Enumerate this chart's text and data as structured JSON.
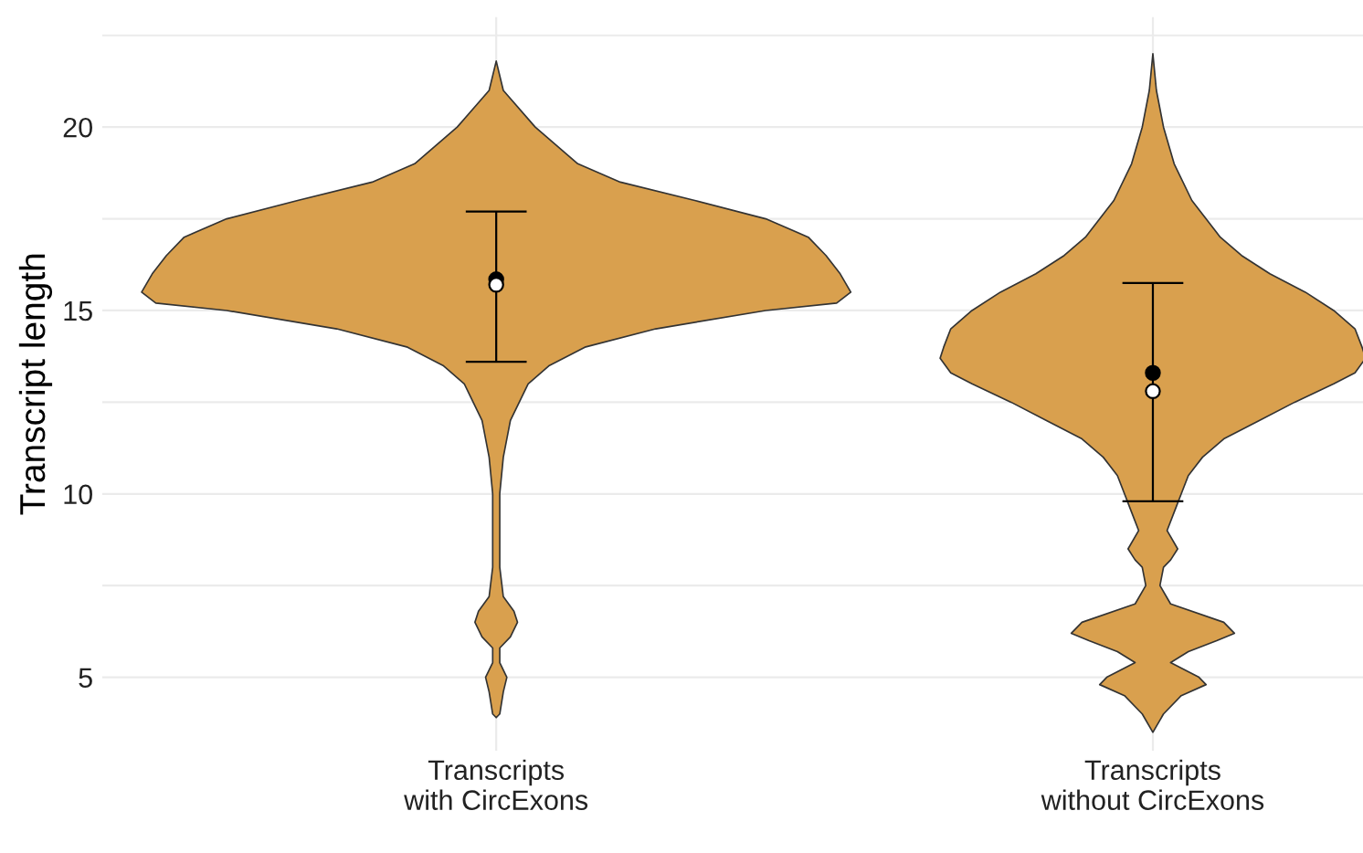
{
  "chart_data": {
    "type": "scatter",
    "ylabel": "Transcript length",
    "categories": [
      "Transcripts\nwith CircExons",
      "Transcripts\nwithout CircExons"
    ],
    "ylim": [
      3,
      23
    ],
    "yticks": [
      5,
      {
        "value": 7.5,
        "label": null
      },
      10,
      {
        "value": 12.5,
        "label": null
      },
      15,
      {
        "value": 17.5,
        "label": null
      },
      20,
      {
        "value": 22.5,
        "label": null
      }
    ],
    "grid": true,
    "series": [
      {
        "color": "#000000",
        "marker": "circle",
        "x": [
          "Transcripts\nwith CircExons",
          "Transcripts\nwithout CircExons"
        ],
        "values": [
          15.85,
          13.3
        ],
        "errors": [
          [
            13.6,
            17.7
          ],
          [
            9.8,
            15.75
          ]
        ]
      },
      {
        "color": "#ffffff",
        "marker": "circle",
        "x": [
          "Transcripts\nwith CircExons",
          "Transcripts\nwithout CircExons"
        ],
        "values": [
          15.7,
          12.8
        ]
      }
    ]
  }
}
